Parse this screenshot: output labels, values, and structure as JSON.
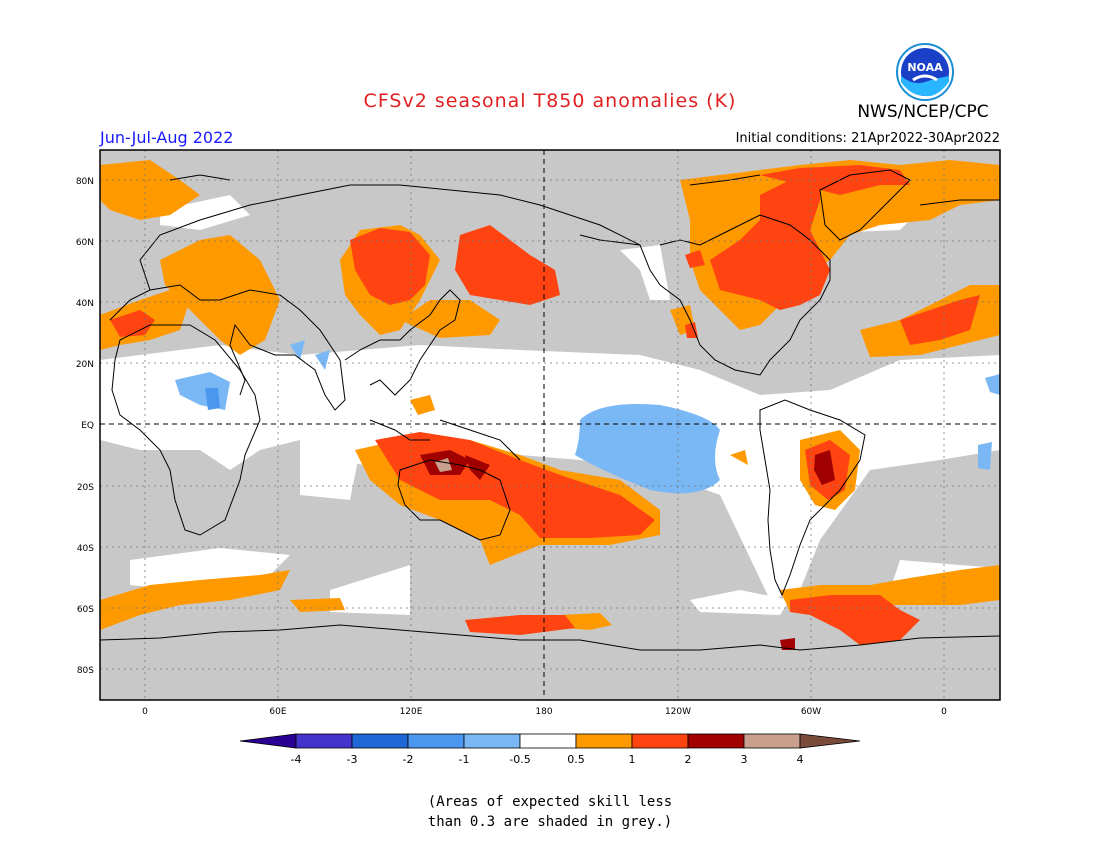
{
  "header": {
    "title": "CFSv2 seasonal T850 anomalies (K)",
    "org": "NWS/NCEP/CPC",
    "logo_text": "NOAA",
    "period": "Jun-Jul-Aug 2022",
    "initial_conditions": "Initial conditions: 21Apr2022-30Apr2022"
  },
  "map": {
    "lat_labels": [
      "80N",
      "60N",
      "40N",
      "20N",
      "EQ",
      "20S",
      "40S",
      "60S",
      "80S"
    ],
    "lon_labels": [
      "0",
      "60E",
      "120E",
      "180",
      "120W",
      "60W",
      "0"
    ],
    "colors": {
      "skill_grey": "#c8c8c8",
      "ocean_white": "#ffffff",
      "coast": "#000000"
    }
  },
  "legend": {
    "labels": [
      "-4",
      "-3",
      "-2",
      "-1",
      "-0.5",
      "0.5",
      "1",
      "2",
      "3",
      "4"
    ],
    "colors": [
      "#2a0094",
      "#4433cc",
      "#1f66d6",
      "#4b96ee",
      "#7ab8f5",
      "#ffffff",
      "#ff9900",
      "#ff4411",
      "#a00000",
      "#c9a08d",
      "#7a4b3a"
    ]
  },
  "note": {
    "line1": "(Areas of expected skill less",
    "line2": "than 0.3 are shaded in grey.)"
  }
}
